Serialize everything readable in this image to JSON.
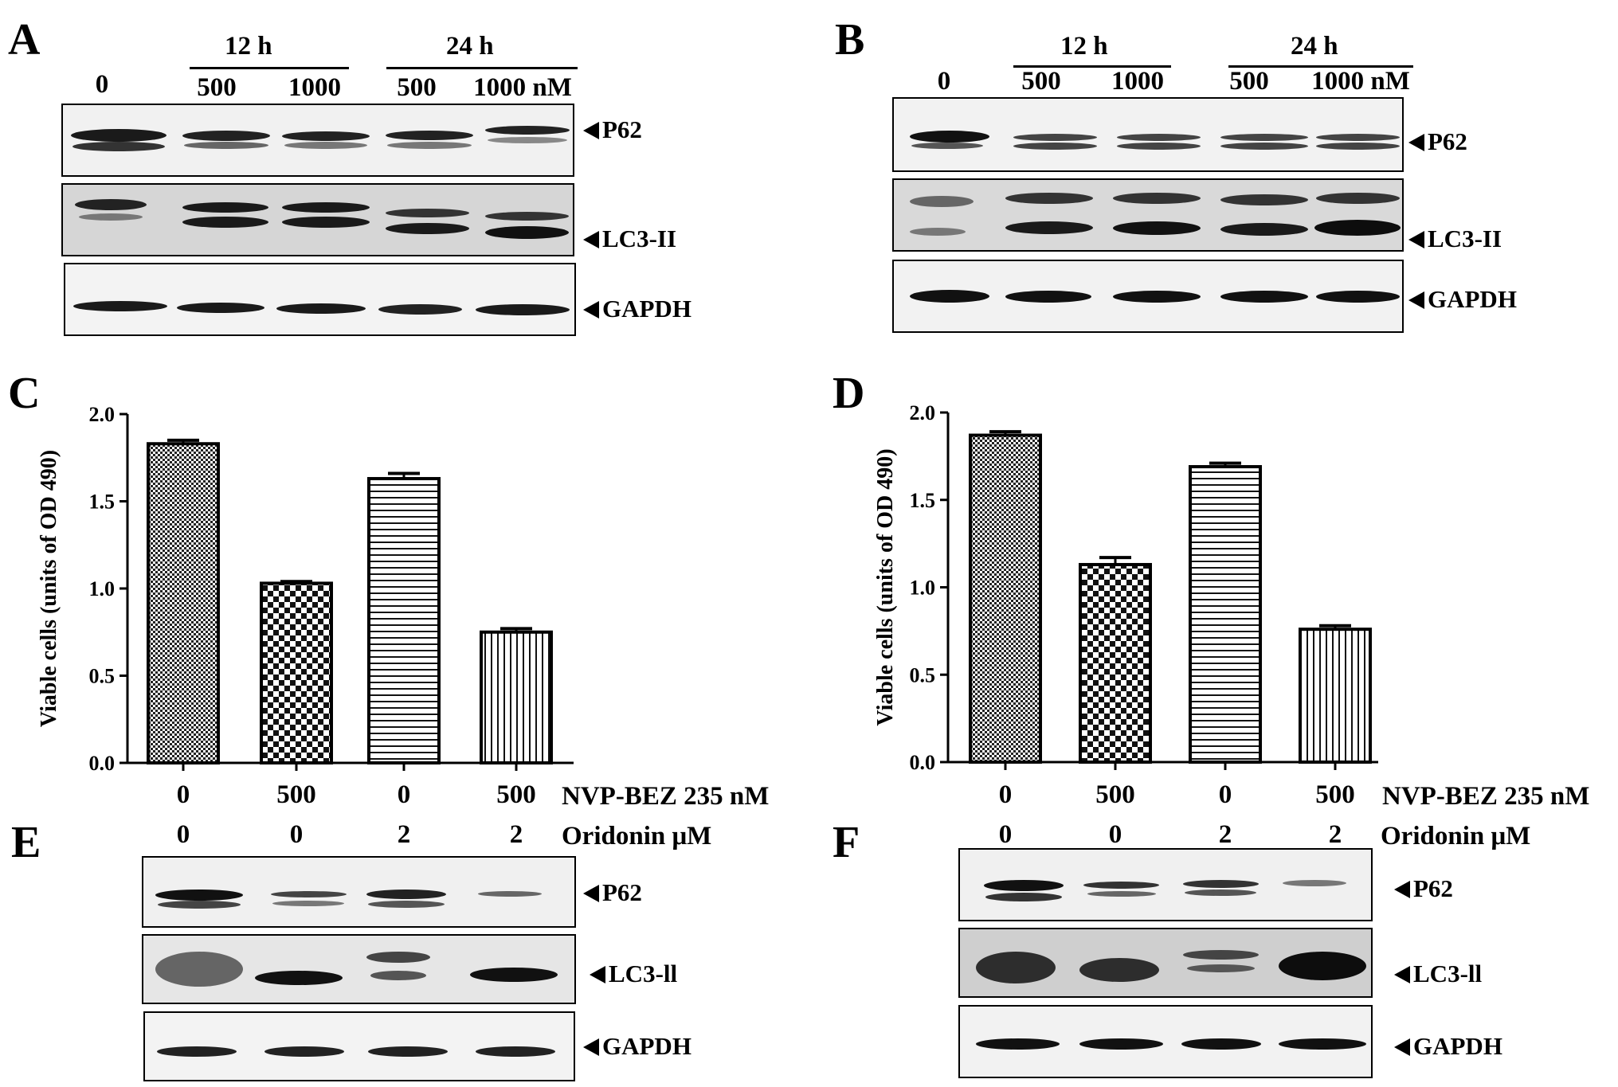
{
  "panels": {
    "A": {
      "letter": "A",
      "time_12": "12 h",
      "time_24": "24 h",
      "lanes": [
        "0",
        "500",
        "1000",
        "500",
        "1000 nM"
      ],
      "markers": [
        "P62",
        "LC3-II",
        "GAPDH"
      ]
    },
    "B": {
      "letter": "B",
      "time_12": "12 h",
      "time_24": "24 h",
      "lanes": [
        "0",
        "500",
        "1000",
        "500",
        "1000 nM"
      ],
      "markers": [
        "P62",
        "LC3-II",
        "GAPDH"
      ]
    },
    "C": {
      "letter": "C"
    },
    "D": {
      "letter": "D"
    },
    "E": {
      "letter": "E",
      "markers": [
        "P62",
        "LC3-ll",
        "GAPDH"
      ]
    },
    "F": {
      "letter": "F",
      "markers": [
        "P62",
        "LC3-ll",
        "GAPDH"
      ]
    }
  },
  "treatment_rows": {
    "nvp": {
      "values": [
        "0",
        "500",
        "0",
        "500"
      ],
      "label": "NVP-BEZ 235 nM"
    },
    "oridonin": {
      "values": [
        "0",
        "0",
        "2",
        "2"
      ],
      "label": "Oridonin  μM"
    }
  },
  "chart_data": [
    {
      "panel": "C",
      "type": "bar",
      "ylabel": "Viable cells (units of OD 490)",
      "ylim": [
        0,
        2.0
      ],
      "yticks": [
        "0.0",
        "0.5",
        "1.0",
        "1.5",
        "2.0"
      ],
      "categories": [
        "0",
        "500",
        "0",
        "500"
      ],
      "values": [
        1.83,
        1.03,
        1.63,
        0.75
      ],
      "errors": [
        0.02,
        0.01,
        0.03,
        0.02
      ],
      "patterns": [
        "fine-check",
        "coarse-check",
        "horizontal",
        "vertical"
      ]
    },
    {
      "panel": "D",
      "type": "bar",
      "ylabel": "Viable cells (units of OD 490)",
      "ylim": [
        0,
        2.0
      ],
      "yticks": [
        "0.0",
        "0.5",
        "1.0",
        "1.5",
        "2.0"
      ],
      "categories": [
        "0",
        "500",
        "0",
        "500"
      ],
      "values": [
        1.87,
        1.13,
        1.69,
        0.76
      ],
      "errors": [
        0.02,
        0.04,
        0.02,
        0.02
      ],
      "patterns": [
        "fine-check",
        "coarse-check",
        "horizontal",
        "vertical"
      ]
    }
  ]
}
